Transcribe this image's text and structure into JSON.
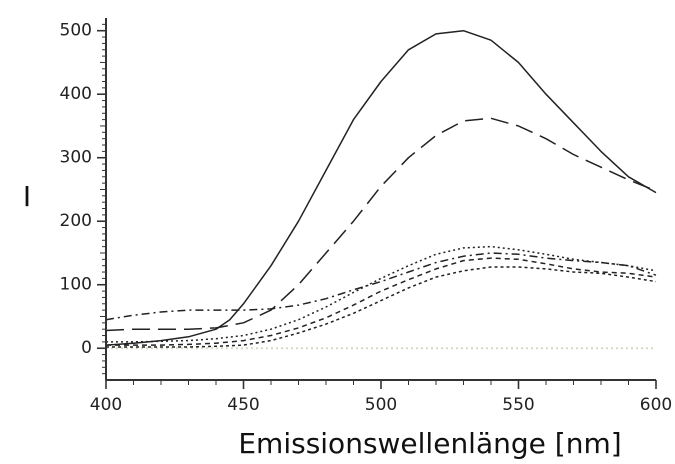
{
  "chart_data": {
    "type": "line",
    "title": "",
    "xlabel": "Emissionswellenlänge [nm]",
    "ylabel": "I",
    "xlim": [
      400,
      600
    ],
    "ylim": [
      -50,
      520
    ],
    "xticks": [
      400,
      450,
      500,
      550,
      600
    ],
    "yticks": [
      0,
      100,
      200,
      300,
      400,
      500
    ],
    "xtick_labels": [
      "400",
      "450",
      "500",
      "550",
      "600"
    ],
    "ytick_labels": [
      "0",
      "100",
      "200",
      "300",
      "400",
      "500"
    ],
    "grid": false,
    "legend": "none",
    "series": [
      {
        "style": "solid",
        "x": [
          400,
          410,
          420,
          430,
          440,
          445,
          450,
          455,
          460,
          470,
          480,
          490,
          500,
          510,
          520,
          530,
          540,
          550,
          560,
          570,
          580,
          590,
          600
        ],
        "y": [
          5,
          8,
          12,
          18,
          30,
          45,
          70,
          100,
          130,
          200,
          280,
          360,
          420,
          470,
          495,
          500,
          485,
          450,
          400,
          355,
          310,
          270,
          245
        ]
      },
      {
        "style": "long-dash",
        "x": [
          400,
          410,
          420,
          430,
          440,
          450,
          460,
          470,
          480,
          490,
          500,
          510,
          520,
          530,
          540,
          550,
          560,
          570,
          580,
          590,
          600
        ],
        "y": [
          28,
          30,
          30,
          30,
          32,
          40,
          60,
          100,
          150,
          200,
          255,
          300,
          335,
          358,
          362,
          350,
          330,
          305,
          285,
          265,
          248
        ]
      },
      {
        "style": "dash-dot",
        "x": [
          400,
          410,
          420,
          430,
          440,
          450,
          460,
          470,
          480,
          490,
          500,
          510,
          520,
          530,
          540,
          550,
          560,
          570,
          580,
          590,
          600
        ],
        "y": [
          45,
          52,
          57,
          60,
          60,
          60,
          62,
          68,
          78,
          92,
          105,
          120,
          135,
          145,
          150,
          148,
          142,
          138,
          135,
          130,
          115
        ]
      },
      {
        "style": "dotted",
        "x": [
          400,
          410,
          420,
          430,
          440,
          450,
          460,
          470,
          480,
          490,
          500,
          510,
          520,
          530,
          540,
          550,
          560,
          570,
          580,
          590,
          600
        ],
        "y": [
          10,
          10,
          11,
          12,
          15,
          20,
          30,
          45,
          65,
          88,
          110,
          130,
          148,
          158,
          160,
          155,
          148,
          140,
          135,
          130,
          122
        ]
      },
      {
        "style": "short-dash",
        "x": [
          400,
          410,
          420,
          430,
          440,
          450,
          460,
          470,
          480,
          490,
          500,
          510,
          520,
          530,
          540,
          550,
          560,
          570,
          580,
          590,
          600
        ],
        "y": [
          5,
          5,
          5,
          6,
          8,
          12,
          20,
          32,
          48,
          68,
          90,
          108,
          125,
          138,
          142,
          140,
          133,
          125,
          120,
          118,
          112
        ]
      },
      {
        "style": "fine-dash",
        "x": [
          400,
          410,
          420,
          430,
          440,
          450,
          460,
          470,
          480,
          490,
          500,
          510,
          520,
          530,
          540,
          550,
          560,
          570,
          580,
          590,
          600
        ],
        "y": [
          2,
          2,
          2,
          2,
          3,
          5,
          12,
          24,
          38,
          55,
          75,
          95,
          112,
          122,
          128,
          128,
          125,
          120,
          118,
          112,
          105
        ]
      }
    ],
    "reference_line": {
      "y": 0,
      "color": "#d8d8c8",
      "style": "dotted"
    },
    "colors": {
      "line": "#222222",
      "axis": "#333333",
      "background": "#ffffff"
    }
  }
}
